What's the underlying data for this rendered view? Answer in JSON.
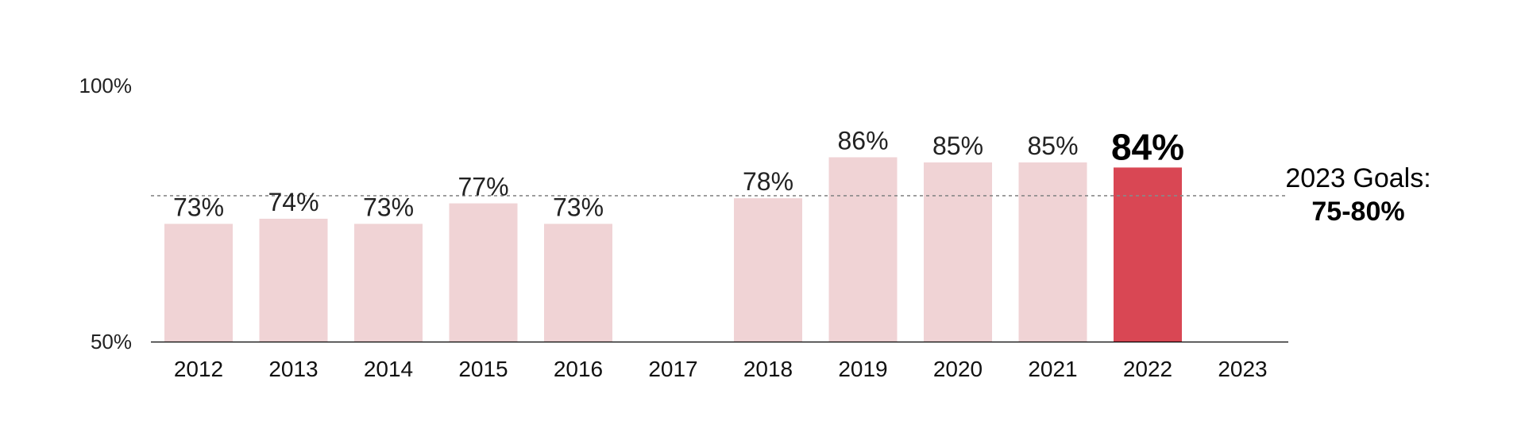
{
  "chart_data": {
    "type": "bar",
    "categories": [
      "2012",
      "2013",
      "2014",
      "2015",
      "2016",
      "2017",
      "2018",
      "2019",
      "2020",
      "2021",
      "2022",
      "2023"
    ],
    "values": [
      73,
      74,
      73,
      77,
      73,
      null,
      78,
      86,
      85,
      85,
      84,
      null
    ],
    "value_labels": [
      "73%",
      "74%",
      "73%",
      "77%",
      "73%",
      "",
      "78%",
      "86%",
      "85%",
      "85%",
      "84%",
      ""
    ],
    "highlight_index": 10,
    "ylim": [
      50,
      100
    ],
    "y_tick_labels": [
      {
        "value": 100,
        "label": "100%"
      },
      {
        "value": 50,
        "label": "50%"
      }
    ],
    "goal": {
      "label": "2023 Goals:",
      "value_label": "75-80%",
      "line_value": 78.5
    },
    "colors": {
      "bar": "#f0d3d5",
      "highlight": "#d94754",
      "goal_line": "#888888",
      "axis": "#000000",
      "text": "#222222"
    },
    "grid": false,
    "legend": "none"
  }
}
